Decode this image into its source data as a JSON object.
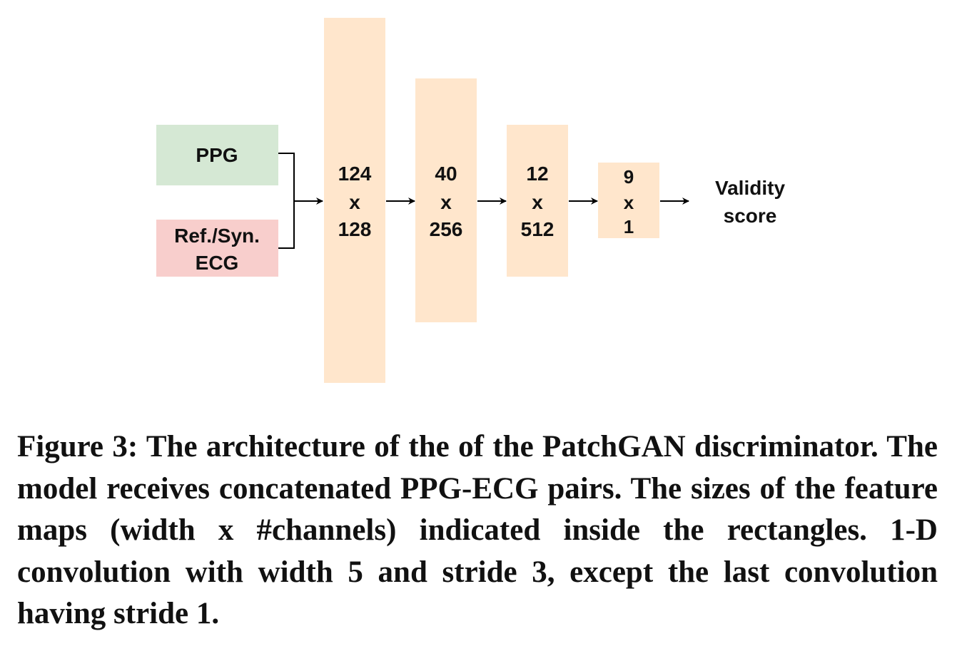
{
  "diagram": {
    "inputs": {
      "ppg_label": "PPG",
      "ecg_label_line1": "Ref./Syn.",
      "ecg_label_line2": "ECG"
    },
    "feature_maps": [
      {
        "width": "124",
        "sep": "x",
        "channels": "128"
      },
      {
        "width": "40",
        "sep": "x",
        "channels": "256"
      },
      {
        "width": "12",
        "sep": "x",
        "channels": "512"
      },
      {
        "width": "9",
        "sep": "x",
        "channels": "1"
      }
    ],
    "output": {
      "line1": "Validity",
      "line2": "score"
    },
    "colors": {
      "ppg_fill": "#d5e8d4",
      "ecg_fill": "#f8cecc",
      "feature_fill": "#ffe6cc",
      "stroke": "#000000"
    }
  },
  "caption": "Figure 3: The architecture of the of the PatchGAN discriminator. The model receives concatenated PPG-ECG pairs. The sizes of the feature maps (width x #channels) indicated inside the rectangles. 1-D convolution with width 5 and stride 3, except the last convolution having stride 1."
}
